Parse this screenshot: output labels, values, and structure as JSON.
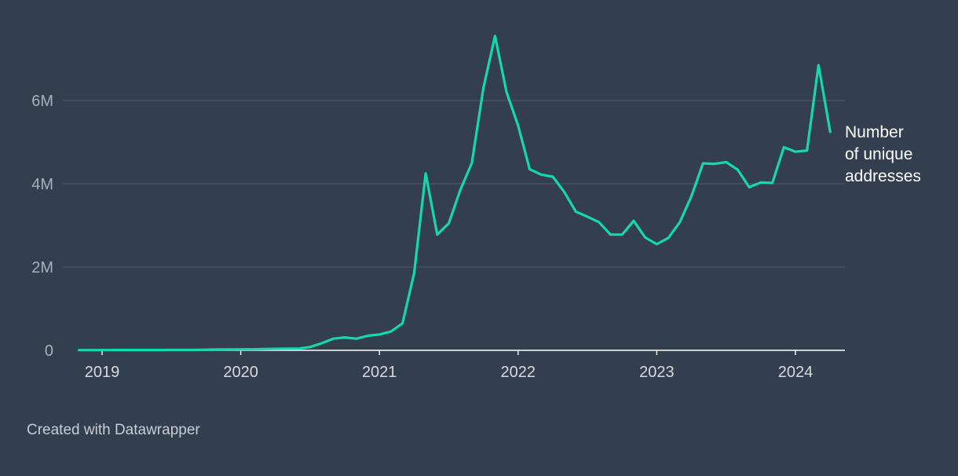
{
  "chart_data": {
    "type": "line",
    "title": "",
    "xlabel": "",
    "ylabel": "",
    "ylim": [
      0,
      7800000
    ],
    "xlim": [
      "2018-10",
      "2024-04"
    ],
    "grid": true,
    "y_ticks": [
      {
        "value": 0,
        "label": "0"
      },
      {
        "value": 2000000,
        "label": "2M"
      },
      {
        "value": 4000000,
        "label": "4M"
      },
      {
        "value": 6000000,
        "label": "6M"
      }
    ],
    "x_ticks": [
      "2019",
      "2020",
      "2021",
      "2022",
      "2023",
      "2024"
    ],
    "series": [
      {
        "name": "Number of unique addresses",
        "label_lines": [
          "Number",
          "of unique",
          "addresses"
        ],
        "color": "#14d9ad",
        "x": [
          "2018-11",
          "2018-12",
          "2019-01",
          "2019-02",
          "2019-03",
          "2019-04",
          "2019-05",
          "2019-06",
          "2019-07",
          "2019-08",
          "2019-09",
          "2019-10",
          "2019-11",
          "2019-12",
          "2020-01",
          "2020-02",
          "2020-03",
          "2020-04",
          "2020-05",
          "2020-06",
          "2020-07",
          "2020-08",
          "2020-09",
          "2020-10",
          "2020-11",
          "2020-12",
          "2021-01",
          "2021-02",
          "2021-03",
          "2021-04",
          "2021-05",
          "2021-06",
          "2021-07",
          "2021-08",
          "2021-09",
          "2021-10",
          "2021-11",
          "2021-12",
          "2022-01",
          "2022-02",
          "2022-03",
          "2022-04",
          "2022-05",
          "2022-06",
          "2022-07",
          "2022-08",
          "2022-09",
          "2022-10",
          "2022-11",
          "2022-12",
          "2023-01",
          "2023-02",
          "2023-03",
          "2023-04",
          "2023-05",
          "2023-06",
          "2023-07",
          "2023-08",
          "2023-09",
          "2023-10",
          "2023-11",
          "2023-12",
          "2024-01",
          "2024-02",
          "2024-03",
          "2024-04"
        ],
        "values": [
          5000,
          5000,
          5000,
          8000,
          8000,
          8000,
          8000,
          8000,
          10000,
          10000,
          10000,
          15000,
          20000,
          20000,
          25000,
          25000,
          30000,
          35000,
          40000,
          40000,
          80000,
          170000,
          280000,
          310000,
          280000,
          350000,
          380000,
          450000,
          650000,
          1850000,
          4250000,
          2780000,
          3050000,
          3850000,
          4500000,
          6300000,
          7550000,
          6200000,
          5400000,
          4350000,
          4220000,
          4170000,
          3800000,
          3330000,
          3210000,
          3080000,
          2780000,
          2780000,
          3110000,
          2710000,
          2550000,
          2700000,
          3080000,
          3700000,
          4490000,
          4480000,
          4520000,
          4340000,
          3920000,
          4030000,
          4020000,
          4880000,
          4770000,
          4800000,
          6850000,
          5250000
        ]
      }
    ]
  },
  "footer": {
    "credit": "Created with Datawrapper"
  }
}
